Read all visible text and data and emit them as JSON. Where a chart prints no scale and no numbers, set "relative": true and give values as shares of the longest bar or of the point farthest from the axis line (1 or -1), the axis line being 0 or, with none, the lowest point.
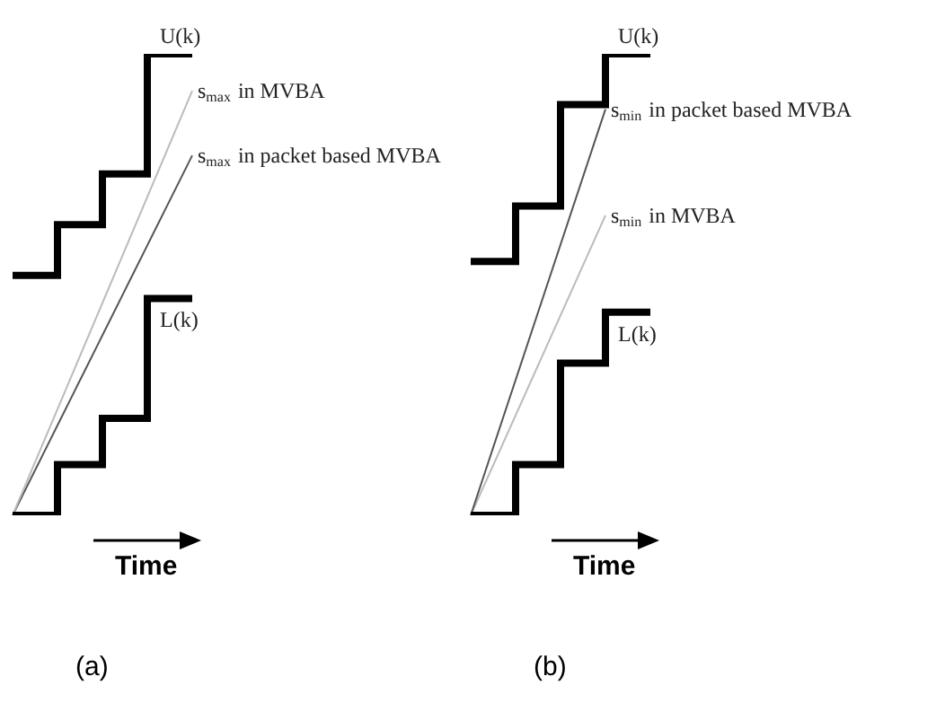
{
  "chart_data": [
    {
      "type": "step",
      "title": "(a)",
      "xlabel": "Time",
      "relative": true,
      "categories": [
        null,
        null,
        null,
        null,
        null
      ],
      "series": [
        {
          "name": "U(k)",
          "type": "step",
          "color": "#000000",
          "values": [
            0.52,
            0.63,
            0.74,
            1,
            1
          ]
        },
        {
          "name": "L(k)",
          "type": "step",
          "color": "#000000",
          "values": [
            0,
            0.11,
            0.21,
            0.47,
            0.47
          ]
        },
        {
          "name": "s$_{max}$ in MVBA",
          "type": "line",
          "color": "#bbbbbb",
          "values": [
            0,
            null,
            null,
            null,
            0.92
          ]
        },
        {
          "name": "s$_{max}$ in packet based MVBA",
          "type": "line",
          "color": "#555555",
          "values": [
            0,
            null,
            null,
            null,
            0.78
          ]
        }
      ]
    },
    {
      "type": "step",
      "title": "(b)",
      "xlabel": "Time",
      "relative": true,
      "categories": [
        null,
        null,
        null,
        null,
        null
      ],
      "series": [
        {
          "name": "U(k)",
          "type": "step",
          "color": "#000000",
          "values": [
            0.55,
            0.67,
            0.89,
            1,
            1
          ]
        },
        {
          "name": "L(k)",
          "type": "step",
          "color": "#000000",
          "values": [
            0,
            0.11,
            0.33,
            0.44,
            0.44
          ]
        },
        {
          "name": "s$_{min}$ in packet based MVBA",
          "type": "line",
          "color": "#555555",
          "values": [
            0,
            null,
            null,
            0.88,
            null
          ]
        },
        {
          "name": "s$_{min}$ in MVBA",
          "type": "line",
          "color": "#bbbbbb",
          "values": [
            0,
            null,
            null,
            0.65,
            null
          ]
        }
      ]
    }
  ]
}
